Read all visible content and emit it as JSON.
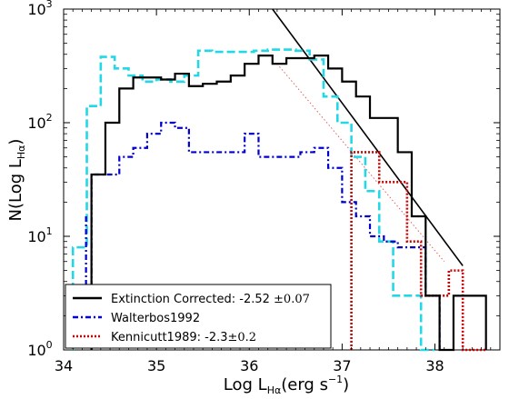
{
  "chart_data": {
    "type": "line",
    "xlabel": "Log L",
    "xlabel_sub": "Hα",
    "xlabel_units": "(erg s",
    "xlabel_units_exp": "−1",
    "xlabel_close": ")",
    "ylabel": "N(Log L",
    "ylabel_sub": "Hα",
    "ylabel_close": ")",
    "xlim": [
      34.0,
      38.7
    ],
    "ylim": [
      1,
      1000
    ],
    "yscale": "log",
    "xticks": [
      34,
      35,
      36,
      37,
      38
    ],
    "xtick_labels": [
      "34",
      "35",
      "36",
      "37",
      "38"
    ],
    "yticks": [
      1,
      10,
      100,
      1000
    ],
    "ytick_labels": [
      {
        "base": "10",
        "exp": "0"
      },
      {
        "base": "10",
        "exp": "1"
      },
      {
        "base": "10",
        "exp": "2"
      },
      {
        "base": "10",
        "exp": "3"
      }
    ],
    "series": [
      {
        "name": "Extinction Corrected",
        "legend_label": "Extinction Corrected: -2.52 ±0.07",
        "color": "#000000",
        "style": "solid",
        "width": 2.2,
        "edges": [
          34.3,
          34.45,
          34.6,
          34.75,
          34.9,
          35.05,
          35.2,
          35.35,
          35.5,
          35.65,
          35.8,
          35.95,
          36.1,
          36.25,
          36.4,
          36.55,
          36.7,
          36.85,
          37.0,
          37.15,
          37.3,
          37.45,
          37.6,
          37.75,
          37.9,
          38.05,
          38.2,
          38.35,
          38.55
        ],
        "counts": [
          35,
          100,
          200,
          250,
          250,
          240,
          270,
          210,
          220,
          230,
          260,
          330,
          390,
          330,
          370,
          370,
          390,
          300,
          230,
          170,
          110,
          110,
          55,
          15,
          3,
          1,
          3,
          3
        ]
      },
      {
        "name": "Walterbos1992",
        "legend_label": "Walterbos1992",
        "color": "#0000cc",
        "style": "dashdot",
        "width": 2.2,
        "edges": [
          34.3,
          34.45,
          34.6,
          34.75,
          34.9,
          35.05,
          35.2,
          35.35,
          35.5,
          35.65,
          35.8,
          35.95,
          36.1,
          36.25,
          36.4,
          36.55,
          36.7,
          36.85,
          37.0,
          37.15,
          37.3,
          37.45,
          37.6,
          37.75,
          37.9,
          38.05
        ],
        "counts": [
          35,
          35,
          50,
          60,
          80,
          100,
          90,
          55,
          55,
          55,
          55,
          80,
          50,
          50,
          50,
          55,
          60,
          40,
          20,
          15,
          10,
          9,
          8,
          8,
          3
        ],
        "extra_spike": {
          "x": 34.3,
          "top": 15,
          "bottom": 3
        }
      },
      {
        "name": "Kennicutt1989",
        "legend_label": "Kennicutt1989: -2.3±0.2",
        "color": "#cc0000",
        "style": "dotted",
        "width": 2.6,
        "edges": [
          37.1,
          37.25,
          37.4,
          37.55,
          37.7,
          37.85,
          38.0,
          38.15,
          38.3,
          38.45,
          38.55
        ],
        "counts": [
          55,
          55,
          30,
          30,
          9,
          3,
          3,
          5,
          1,
          1
        ]
      },
      {
        "name": "cyan-dashed",
        "legend_label": "",
        "color": "#22d8e6",
        "style": "dashed",
        "width": 2.6,
        "edges": [
          34.1,
          34.25,
          34.4,
          34.55,
          34.7,
          34.85,
          35.0,
          35.15,
          35.3,
          35.45,
          35.6,
          35.75,
          35.9,
          36.05,
          36.2,
          36.35,
          36.5,
          36.65,
          36.8,
          36.95,
          37.1,
          37.25,
          37.4,
          37.55,
          37.7,
          37.85,
          38.0
        ],
        "counts": [
          8,
          140,
          380,
          300,
          260,
          230,
          240,
          230,
          260,
          430,
          420,
          420,
          420,
          430,
          440,
          440,
          430,
          360,
          170,
          100,
          50,
          25,
          9,
          3,
          3,
          1
        ]
      }
    ],
    "fits": [
      {
        "name": "extinction-fit",
        "color": "#000000",
        "style": "solid",
        "width": 1.6,
        "x": [
          36.25,
          38.3
        ],
        "y": [
          1000,
          5.5
        ]
      },
      {
        "name": "kennicutt-fit",
        "color": "#e06060",
        "style": "dotted-thin",
        "width": 1.0,
        "x": [
          36.3,
          38.1
        ],
        "y": [
          330,
          6
        ]
      }
    ],
    "legend": {
      "placement": "lower-left",
      "entries": [
        {
          "label_main": "Extinction Corrected: -2.52 ",
          "label_pm": "±0.07",
          "color": "#000000",
          "style": "solid"
        },
        {
          "label_main": "Walterbos1992",
          "label_pm": "",
          "color": "#0000cc",
          "style": "dashdot"
        },
        {
          "label_main": "Kennicutt1989: -2.3",
          "label_pm": "±0.2",
          "color": "#cc0000",
          "style": "dotted"
        }
      ]
    }
  }
}
